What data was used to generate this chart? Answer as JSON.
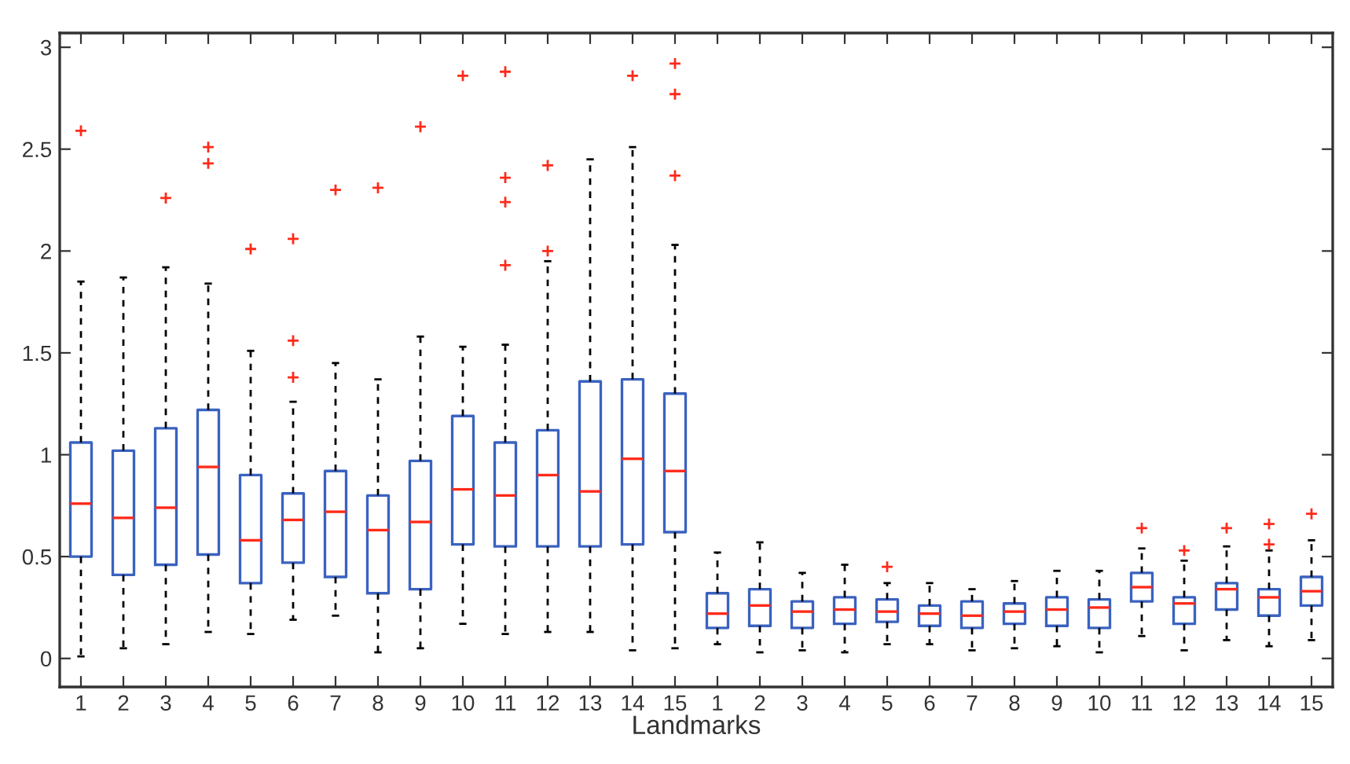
{
  "chart_data": {
    "type": "box",
    "xlabel": "Landmarks",
    "categories": [
      "1",
      "2",
      "3",
      "4",
      "5",
      "6",
      "7",
      "8",
      "9",
      "10",
      "11",
      "12",
      "13",
      "14",
      "15",
      "1",
      "2",
      "3",
      "4",
      "5",
      "6",
      "7",
      "8",
      "9",
      "10",
      "11",
      "12",
      "13",
      "14",
      "15"
    ],
    "ylim": [
      -0.14,
      3.07
    ],
    "yticks": [
      0,
      0.5,
      1,
      1.5,
      2,
      2.5,
      3
    ],
    "grid": false,
    "marker": "cross",
    "series": [
      {
        "color": "#3a62c0",
        "boxes": [
          {
            "low": 0.01,
            "q1": 0.5,
            "median": 0.76,
            "q3": 1.06,
            "high": 1.85,
            "outliers": [
              2.59
            ]
          },
          {
            "low": 0.05,
            "q1": 0.41,
            "median": 0.69,
            "q3": 1.02,
            "high": 1.87
          },
          {
            "low": 0.07,
            "q1": 0.46,
            "median": 0.74,
            "q3": 1.13,
            "high": 1.92,
            "outliers": [
              2.26
            ]
          },
          {
            "low": 0.13,
            "q1": 0.51,
            "median": 0.94,
            "q3": 1.22,
            "high": 1.84,
            "outliers": [
              2.51,
              2.43
            ]
          },
          {
            "low": 0.12,
            "q1": 0.37,
            "median": 0.58,
            "q3": 0.9,
            "high": 1.51,
            "outliers": [
              2.01
            ]
          },
          {
            "low": 0.19,
            "q1": 0.47,
            "median": 0.68,
            "q3": 0.81,
            "high": 1.26,
            "outliers": [
              2.06,
              1.56,
              1.38
            ]
          },
          {
            "low": 0.21,
            "q1": 0.4,
            "median": 0.72,
            "q3": 0.92,
            "high": 1.45,
            "outliers": [
              2.3
            ]
          },
          {
            "low": 0.03,
            "q1": 0.32,
            "median": 0.63,
            "q3": 0.8,
            "high": 1.37,
            "outliers": [
              2.31
            ]
          },
          {
            "low": 0.05,
            "q1": 0.34,
            "median": 0.67,
            "q3": 0.97,
            "high": 1.58,
            "outliers": [
              2.61
            ]
          },
          {
            "low": 0.17,
            "q1": 0.56,
            "median": 0.83,
            "q3": 1.19,
            "high": 1.53,
            "outliers": [
              2.86
            ]
          },
          {
            "low": 0.12,
            "q1": 0.55,
            "median": 0.8,
            "q3": 1.06,
            "high": 1.54,
            "outliers": [
              2.88,
              2.36,
              2.24,
              1.93
            ]
          },
          {
            "low": 0.13,
            "q1": 0.55,
            "median": 0.9,
            "q3": 1.12,
            "high": 1.95,
            "outliers": [
              2.42,
              2.0
            ]
          },
          {
            "low": 0.13,
            "q1": 0.55,
            "median": 0.82,
            "q3": 1.36,
            "high": 2.45
          },
          {
            "low": 0.04,
            "q1": 0.56,
            "median": 0.98,
            "q3": 1.37,
            "high": 2.51,
            "outliers": [
              2.86
            ]
          },
          {
            "low": 0.05,
            "q1": 0.62,
            "median": 0.92,
            "q3": 1.3,
            "high": 2.03,
            "outliers": [
              2.92,
              2.77,
              2.37
            ]
          },
          {
            "low": 0.07,
            "q1": 0.15,
            "median": 0.22,
            "q3": 0.32,
            "high": 0.52
          },
          {
            "low": 0.03,
            "q1": 0.16,
            "median": 0.26,
            "q3": 0.34,
            "high": 0.57
          },
          {
            "low": 0.04,
            "q1": 0.15,
            "median": 0.23,
            "q3": 0.28,
            "high": 0.42
          },
          {
            "low": 0.03,
            "q1": 0.17,
            "median": 0.24,
            "q3": 0.3,
            "high": 0.46
          },
          {
            "low": 0.07,
            "q1": 0.18,
            "median": 0.23,
            "q3": 0.29,
            "high": 0.37,
            "outliers": [
              0.45
            ]
          },
          {
            "low": 0.07,
            "q1": 0.16,
            "median": 0.22,
            "q3": 0.26,
            "high": 0.37
          },
          {
            "low": 0.04,
            "q1": 0.15,
            "median": 0.21,
            "q3": 0.28,
            "high": 0.34
          },
          {
            "low": 0.05,
            "q1": 0.17,
            "median": 0.23,
            "q3": 0.27,
            "high": 0.38
          },
          {
            "low": 0.06,
            "q1": 0.16,
            "median": 0.24,
            "q3": 0.3,
            "high": 0.43
          },
          {
            "low": 0.03,
            "q1": 0.15,
            "median": 0.25,
            "q3": 0.29,
            "high": 0.43
          },
          {
            "low": 0.11,
            "q1": 0.28,
            "median": 0.35,
            "q3": 0.42,
            "high": 0.54,
            "outliers": [
              0.64
            ]
          },
          {
            "low": 0.04,
            "q1": 0.17,
            "median": 0.27,
            "q3": 0.3,
            "high": 0.48,
            "outliers": [
              0.53
            ]
          },
          {
            "low": 0.09,
            "q1": 0.24,
            "median": 0.34,
            "q3": 0.37,
            "high": 0.55,
            "outliers": [
              0.64
            ]
          },
          {
            "low": 0.06,
            "q1": 0.21,
            "median": 0.3,
            "q3": 0.34,
            "high": 0.53,
            "outliers": [
              0.66,
              0.56
            ]
          },
          {
            "low": 0.09,
            "q1": 0.26,
            "median": 0.33,
            "q3": 0.4,
            "high": 0.58,
            "outliers": [
              0.71
            ]
          }
        ]
      }
    ]
  }
}
